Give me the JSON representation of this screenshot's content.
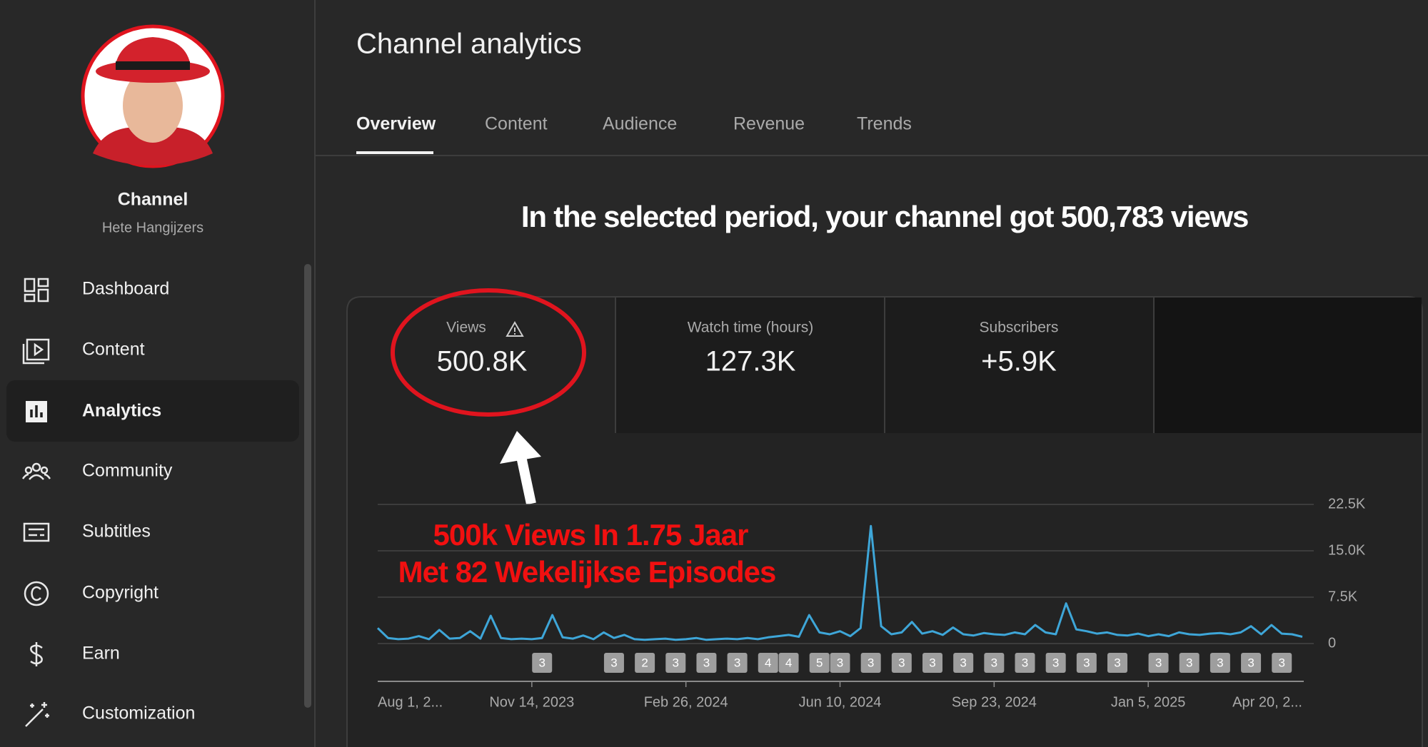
{
  "sidebar": {
    "channel_name": "Channel",
    "channel_handle": "Hete Hangijzers",
    "nav": [
      "Dashboard",
      "Content",
      "Analytics",
      "Community",
      "Subtitles",
      "Copyright",
      "Earn",
      "Customization"
    ]
  },
  "header": {
    "title": "Channel analytics",
    "tabs": [
      "Overview",
      "Content",
      "Audience",
      "Revenue",
      "Trends"
    ]
  },
  "headline": "In the selected period, your channel got 500,783 views",
  "metrics": [
    {
      "label": "Views",
      "value": "500.8K"
    },
    {
      "label": "Watch time (hours)",
      "value": "127.3K"
    },
    {
      "label": "Subscribers",
      "value": "+5.9K"
    }
  ],
  "annotation": [
    "500k Views In 1.75 Jaar",
    "Met 82 Wekelijkse Episodes"
  ],
  "chart_data": {
    "type": "line",
    "categories": [
      "Aug 1, 2...",
      null,
      null,
      null,
      null,
      null,
      null,
      null,
      null,
      null,
      null,
      null,
      null,
      null,
      null,
      "Nov 14, 2023",
      null,
      null,
      null,
      null,
      null,
      null,
      null,
      null,
      null,
      null,
      null,
      null,
      null,
      null,
      "Feb 26, 2024",
      null,
      null,
      null,
      null,
      null,
      null,
      null,
      null,
      null,
      null,
      null,
      null,
      null,
      null,
      "Jun 10, 2024",
      null,
      null,
      null,
      null,
      null,
      null,
      null,
      null,
      null,
      null,
      null,
      null,
      null,
      null,
      "Sep 23, 2024",
      null,
      null,
      null,
      null,
      null,
      null,
      null,
      null,
      null,
      null,
      null,
      null,
      null,
      null,
      "Jan 5, 2025",
      null,
      null,
      null,
      null,
      null,
      null,
      null,
      null,
      null,
      null,
      null,
      null,
      null,
      null,
      "Apr 20, 2..."
    ],
    "series": [
      {
        "color": "#3ea6d8",
        "values": [
          2500,
          900,
          700,
          800,
          1200,
          700,
          2200,
          800,
          900,
          2000,
          800,
          4500,
          900,
          700,
          800,
          700,
          900,
          4600,
          1000,
          800,
          1300,
          700,
          1800,
          900,
          1400,
          700,
          600,
          700,
          800,
          600,
          700,
          900,
          600,
          700,
          800,
          700,
          900,
          700,
          1000,
          1200,
          1400,
          1100,
          4600,
          1800,
          1500,
          2000,
          1200,
          2500,
          19000,
          2800,
          1500,
          1800,
          3500,
          1600,
          2000,
          1400,
          2600,
          1500,
          1300,
          1700,
          1500,
          1400,
          1800,
          1500,
          3000,
          1800,
          1500,
          6500,
          2300,
          2000,
          1600,
          1800,
          1400,
          1300,
          1600,
          1200,
          1500,
          1200,
          1800,
          1500,
          1400,
          1600,
          1700,
          1500,
          1800,
          2800,
          1500,
          3000,
          1600,
          1500,
          1100
        ]
      }
    ],
    "video_counts": [
      null,
      null,
      null,
      null,
      null,
      null,
      null,
      null,
      null,
      null,
      null,
      null,
      null,
      null,
      null,
      null,
      3,
      null,
      null,
      null,
      null,
      null,
      null,
      3,
      null,
      null,
      2,
      null,
      null,
      3,
      null,
      null,
      3,
      null,
      null,
      3,
      null,
      null,
      4,
      null,
      4,
      null,
      null,
      5,
      null,
      3,
      null,
      null,
      3,
      null,
      null,
      3,
      null,
      null,
      3,
      null,
      null,
      3,
      null,
      null,
      3,
      null,
      null,
      3,
      null,
      null,
      3,
      null,
      null,
      3,
      null,
      null,
      3,
      null,
      null,
      null,
      3,
      null,
      null,
      3,
      null,
      null,
      3,
      null,
      null,
      3,
      null,
      null,
      3,
      null,
      null
    ],
    "ylim": [
      0,
      22500
    ],
    "yticks": [
      {
        "value": 0,
        "label": "0"
      },
      {
        "value": 7500,
        "label": "7.5K"
      },
      {
        "value": 15000,
        "label": "15.0K"
      },
      {
        "value": 22500,
        "label": "22.5K"
      }
    ],
    "grid": true
  }
}
